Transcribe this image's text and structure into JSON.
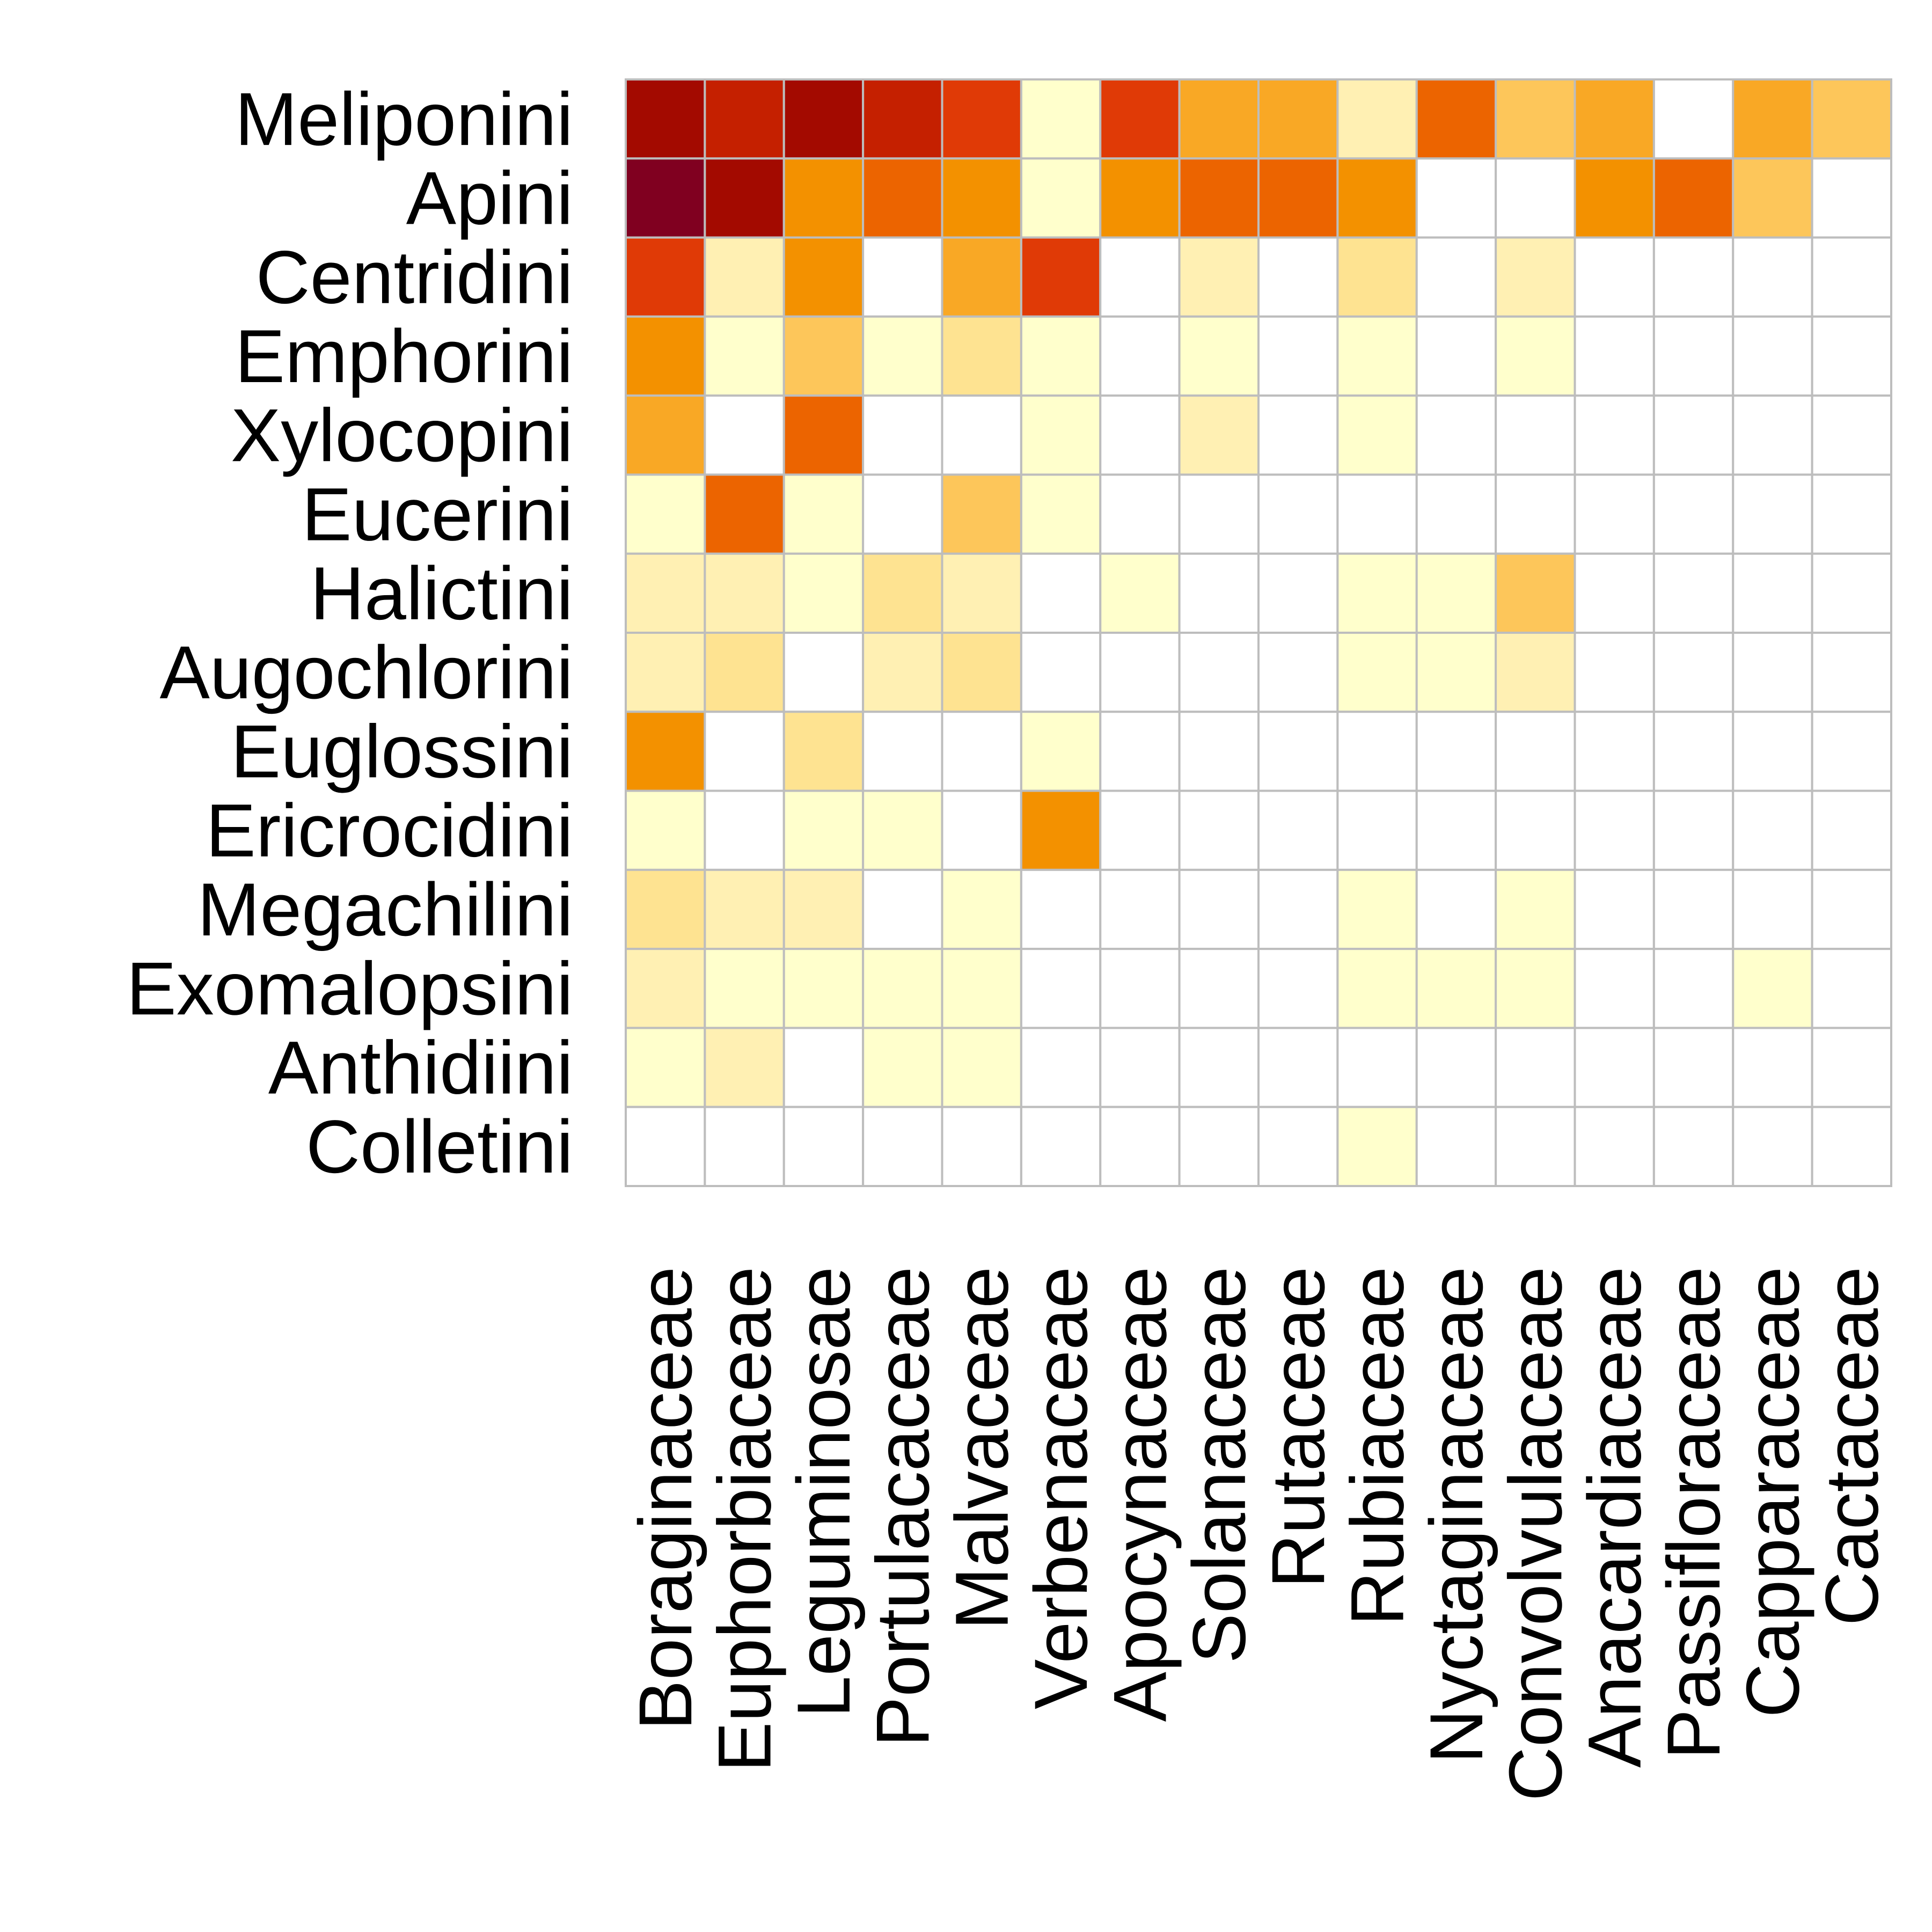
{
  "chart_data": {
    "type": "heatmap",
    "title": "",
    "xlabel": "",
    "ylabel": "",
    "rows": [
      "Meliponini",
      "Apini",
      "Centridini",
      "Emphorini",
      "Xylocopini",
      "Eucerini",
      "Halictini",
      "Augochlorini",
      "Euglossini",
      "Ericrocidini",
      "Megachilini",
      "Exomalopsini",
      "Anthidiini",
      "Colletini"
    ],
    "columns": [
      "Boraginaceae",
      "Euphorbiaceae",
      "Leguminosae",
      "Portulacaceae",
      "Malvaceae",
      "Verbenaceae",
      "Apocynaceae",
      "Solanaceae",
      "Rutaceae",
      "Rubiaceae",
      "Nyctaginaceae",
      "Convolvulaceae",
      "Anacardiaceae",
      "Passifloraceae",
      "Capparaceae",
      "Cactaceae"
    ],
    "scale_max": 20,
    "values": [
      [
        19,
        16,
        18,
        17,
        15,
        1,
        14,
        9,
        8,
        2,
        13,
        6,
        8,
        0,
        9,
        6
      ],
      [
        20,
        18,
        11,
        13,
        11,
        1,
        11,
        12,
        12,
        10,
        0,
        0,
        10,
        12,
        6,
        0
      ],
      [
        14,
        3,
        11,
        0,
        9,
        15,
        0,
        3,
        0,
        5,
        0,
        2,
        0,
        0,
        0,
        0
      ],
      [
        11,
        1,
        7,
        1,
        4,
        1,
        0,
        1,
        0,
        1,
        0,
        1,
        0,
        0,
        0,
        0
      ],
      [
        9,
        0,
        12,
        0,
        0,
        1,
        0,
        2,
        0,
        1,
        0,
        0,
        0,
        0,
        0,
        0
      ],
      [
        1,
        12,
        1,
        0,
        6,
        1,
        0,
        0,
        0,
        0,
        0,
        0,
        0,
        0,
        0,
        0
      ],
      [
        2,
        3,
        1,
        4,
        3,
        0,
        1,
        0,
        0,
        1,
        1,
        6,
        0,
        0,
        0,
        0
      ],
      [
        2,
        5,
        0,
        3,
        5,
        0,
        0,
        0,
        0,
        1,
        1,
        3,
        0,
        0,
        0,
        0
      ],
      [
        10,
        0,
        5,
        0,
        0,
        1,
        0,
        0,
        0,
        0,
        0,
        0,
        0,
        0,
        0,
        0
      ],
      [
        1,
        0,
        1,
        1,
        0,
        11,
        0,
        0,
        0,
        0,
        0,
        0,
        0,
        0,
        0,
        0
      ],
      [
        4,
        3,
        3,
        0,
        1,
        0,
        0,
        0,
        0,
        1,
        0,
        1,
        0,
        0,
        0,
        0
      ],
      [
        3,
        1,
        1,
        1,
        1,
        0,
        0,
        0,
        0,
        1,
        1,
        1,
        0,
        0,
        1,
        0
      ],
      [
        1,
        2,
        0,
        1,
        1,
        0,
        0,
        0,
        0,
        0,
        0,
        0,
        0,
        0,
        0,
        0
      ],
      [
        0,
        0,
        0,
        0,
        0,
        0,
        0,
        0,
        0,
        1,
        0,
        0,
        0,
        0,
        0,
        0
      ]
    ],
    "colors": {
      "zero": "#ffffff",
      "gradient": [
        "#ffffcc",
        "#fff0b3",
        "#fee391",
        "#fdc65a",
        "#f9a825",
        "#f39100",
        "#ec6400",
        "#e03a06",
        "#c52000",
        "#a30a00",
        "#800020"
      ],
      "grid": "#bdbdbd"
    },
    "legend": "none",
    "grid": true
  }
}
